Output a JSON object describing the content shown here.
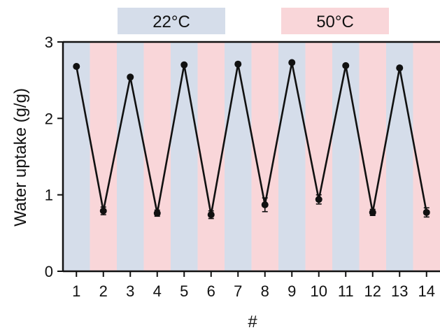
{
  "colors": {
    "cool": "#d5ddea",
    "warm": "#f9d6d9",
    "line": "#111111",
    "axis": "#111111"
  },
  "legend": [
    {
      "label": "22°C",
      "color": "#d5ddea"
    },
    {
      "label": "50°C",
      "color": "#f9d6d9"
    }
  ],
  "chart_data": {
    "type": "line",
    "xlabel": "#",
    "ylabel": "Water uptake (g/g)",
    "x": [
      1,
      2,
      3,
      4,
      5,
      6,
      7,
      8,
      9,
      10,
      11,
      12,
      13,
      14
    ],
    "series": [
      {
        "values": [
          2.68,
          0.79,
          2.54,
          0.76,
          2.7,
          0.74,
          2.71,
          0.87,
          2.73,
          0.94,
          2.69,
          0.77,
          2.66,
          0.77
        ],
        "errors": [
          0.02,
          0.05,
          0.02,
          0.04,
          0.02,
          0.05,
          0.02,
          0.09,
          0.02,
          0.06,
          0.02,
          0.04,
          0.02,
          0.06
        ]
      }
    ],
    "ylim": [
      0,
      3
    ],
    "yticks": [
      0,
      1,
      2,
      3
    ],
    "xlim": [
      0.5,
      14.5
    ],
    "grid": false,
    "background_bands": [
      "cool",
      "warm",
      "cool",
      "warm",
      "cool",
      "warm",
      "cool",
      "warm",
      "cool",
      "warm",
      "cool",
      "warm",
      "cool",
      "warm"
    ]
  }
}
